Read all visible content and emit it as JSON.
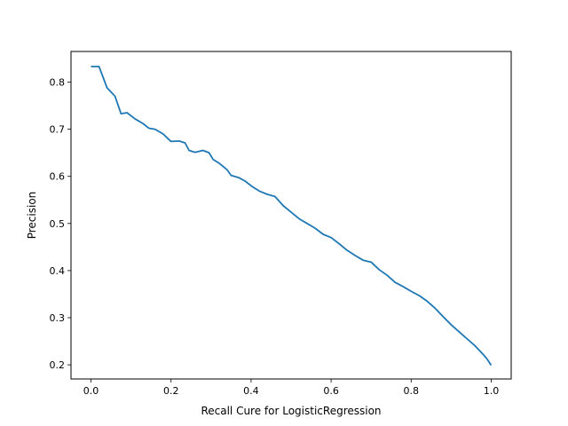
{
  "chart_data": {
    "type": "line",
    "title": "",
    "xlabel": "Recall Cure for LogisticRegression",
    "ylabel": "Precision",
    "xlim": [
      -0.05,
      1.05
    ],
    "ylim": [
      0.17,
      0.865
    ],
    "grid": false,
    "legend": "none",
    "x_ticks": [
      0.0,
      0.2,
      0.4,
      0.6,
      0.8,
      1.0
    ],
    "x_tick_labels": [
      "0.0",
      "0.2",
      "0.4",
      "0.6",
      "0.8",
      "1.0"
    ],
    "y_ticks": [
      0.2,
      0.3,
      0.4,
      0.5,
      0.6,
      0.7,
      0.8
    ],
    "y_tick_labels": [
      "0.2",
      "0.3",
      "0.4",
      "0.5",
      "0.6",
      "0.7",
      "0.8"
    ],
    "series": [
      {
        "color": "#1f77b4",
        "x": [
          0.0,
          0.02,
          0.04,
          0.06,
          0.075,
          0.09,
          0.11,
          0.13,
          0.145,
          0.16,
          0.18,
          0.2,
          0.22,
          0.235,
          0.245,
          0.26,
          0.28,
          0.295,
          0.305,
          0.32,
          0.34,
          0.35,
          0.37,
          0.385,
          0.4,
          0.42,
          0.44,
          0.46,
          0.48,
          0.5,
          0.52,
          0.54,
          0.56,
          0.58,
          0.6,
          0.62,
          0.64,
          0.66,
          0.68,
          0.7,
          0.72,
          0.74,
          0.76,
          0.78,
          0.8,
          0.82,
          0.84,
          0.86,
          0.88,
          0.9,
          0.92,
          0.94,
          0.96,
          0.98,
          0.99,
          1.0
        ],
        "y": [
          0.833,
          0.833,
          0.788,
          0.77,
          0.733,
          0.735,
          0.722,
          0.712,
          0.702,
          0.7,
          0.69,
          0.674,
          0.675,
          0.671,
          0.655,
          0.651,
          0.655,
          0.65,
          0.636,
          0.628,
          0.614,
          0.602,
          0.597,
          0.59,
          0.58,
          0.569,
          0.562,
          0.557,
          0.538,
          0.524,
          0.51,
          0.5,
          0.49,
          0.477,
          0.47,
          0.457,
          0.443,
          0.432,
          0.422,
          0.418,
          0.402,
          0.39,
          0.375,
          0.366,
          0.356,
          0.347,
          0.335,
          0.32,
          0.302,
          0.285,
          0.27,
          0.255,
          0.24,
          0.222,
          0.212,
          0.199
        ]
      }
    ]
  }
}
